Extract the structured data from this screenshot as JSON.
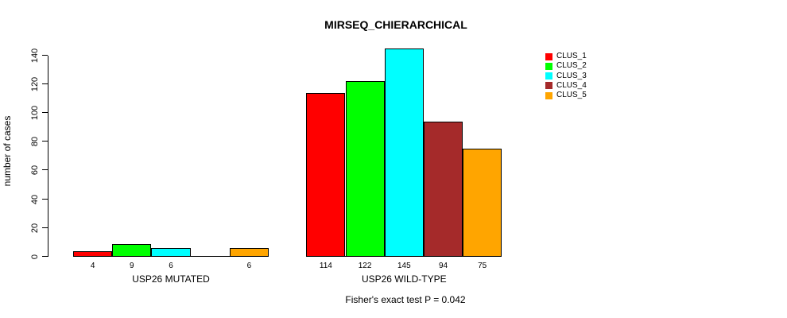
{
  "title": "MIRSEQ_CHIERARCHICAL",
  "chart_data": {
    "type": "bar",
    "title": "MIRSEQ_CHIERARCHICAL",
    "xlabel": "",
    "ylabel": "number of cases",
    "ylim": [
      0,
      145
    ],
    "yticks": [
      0,
      20,
      40,
      60,
      80,
      100,
      120,
      140
    ],
    "grid": false,
    "legend_position": "right",
    "groups": [
      "USP26 MUTATED",
      "USP26 WILD-TYPE"
    ],
    "series": [
      {
        "name": "CLUS_1",
        "color": "#FF0000",
        "values": [
          4,
          114
        ]
      },
      {
        "name": "CLUS_2",
        "color": "#00FF00",
        "values": [
          9,
          122
        ]
      },
      {
        "name": "CLUS_3",
        "color": "#00FFFF",
        "values": [
          6,
          145
        ]
      },
      {
        "name": "CLUS_4",
        "color": "#A52A2A",
        "values": [
          0,
          94
        ]
      },
      {
        "name": "CLUS_5",
        "color": "#FFA500",
        "values": [
          6,
          75
        ]
      }
    ],
    "bar_labels": [
      [
        "4",
        "9",
        "6",
        "",
        "6"
      ],
      [
        "114",
        "122",
        "145",
        "94",
        "75"
      ]
    ],
    "annotation": "Fisher's exact test P = 0.042"
  },
  "colors": {
    "background": "#FFFFFF",
    "axis": "#000000",
    "text": "#000000"
  }
}
